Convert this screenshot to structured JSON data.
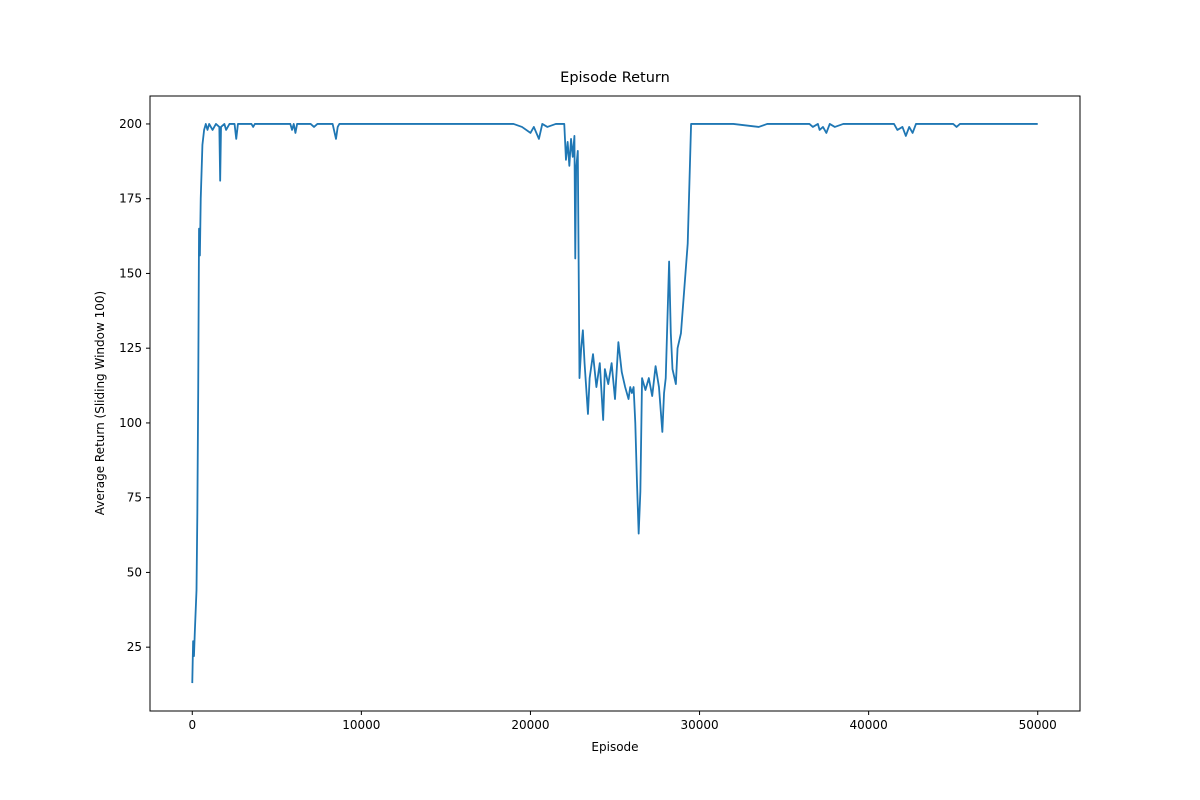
{
  "chart_data": {
    "type": "line",
    "title": "Episode Return",
    "x_label": "Episode",
    "y_label": "Average Return (Sliding Window 100)",
    "color": "#1f77b4",
    "x": [
      0,
      50,
      100,
      150,
      250,
      300,
      350,
      400,
      450,
      500,
      600,
      700,
      800,
      900,
      1000,
      1200,
      1400,
      1600,
      1650,
      1700,
      1900,
      2000,
      2200,
      2500,
      2600,
      2700,
      3500,
      3600,
      3700,
      5800,
      5900,
      6000,
      6100,
      6200,
      7000,
      7200,
      7400,
      8300,
      8500,
      8600,
      8700,
      19000,
      19500,
      20000,
      20200,
      20500,
      20700,
      21000,
      21500,
      22000,
      22100,
      22200,
      22300,
      22400,
      22500,
      22600,
      22650,
      22700,
      22800,
      22900,
      23000,
      23100,
      23200,
      23400,
      23500,
      23700,
      23900,
      24100,
      24300,
      24400,
      24600,
      24800,
      25000,
      25200,
      25400,
      25600,
      25800,
      25900,
      26000,
      26100,
      26200,
      26300,
      26400,
      26500,
      26600,
      26800,
      27000,
      27200,
      27400,
      27600,
      27800,
      27900,
      28000,
      28200,
      28300,
      28400,
      28600,
      28700,
      28900,
      29100,
      29300,
      29500,
      30000,
      32000,
      33500,
      34000,
      36500,
      36700,
      37000,
      37100,
      37300,
      37500,
      37700,
      38000,
      38500,
      41500,
      41700,
      42000,
      42200,
      42400,
      42600,
      42800,
      45000,
      45200,
      45400,
      50000
    ],
    "values": [
      13,
      27,
      22,
      30,
      44,
      70,
      110,
      165,
      156,
      175,
      193,
      198,
      200,
      198,
      200,
      198,
      200,
      199,
      181,
      199,
      200,
      198,
      200,
      200,
      195,
      200,
      200,
      199,
      200,
      200,
      198,
      200,
      197,
      200,
      200,
      199,
      200,
      200,
      195,
      199,
      200,
      200,
      199,
      197,
      199,
      195,
      200,
      199,
      200,
      200,
      188,
      194,
      186,
      195,
      189,
      196,
      155,
      185,
      191,
      115,
      125,
      131,
      120,
      103,
      115,
      123,
      112,
      120,
      101,
      118,
      113,
      120,
      108,
      127,
      117,
      112,
      108,
      112,
      110,
      112,
      100,
      80,
      63,
      77,
      115,
      111,
      115,
      109,
      119,
      112,
      97,
      110,
      115,
      154,
      130,
      118,
      113,
      125,
      130,
      145,
      160,
      200,
      200,
      200,
      199,
      200,
      200,
      199,
      200,
      198,
      199,
      197,
      200,
      199,
      200,
      200,
      198,
      199,
      196,
      199,
      197,
      200,
      200,
      199,
      200,
      200
    ],
    "xlim": [
      -2500,
      52500
    ],
    "ylim": [
      3.65,
      209.35
    ],
    "xticks": [
      0,
      10000,
      20000,
      30000,
      40000,
      50000
    ],
    "yticks": [
      25,
      50,
      75,
      100,
      125,
      150,
      175,
      200
    ]
  }
}
